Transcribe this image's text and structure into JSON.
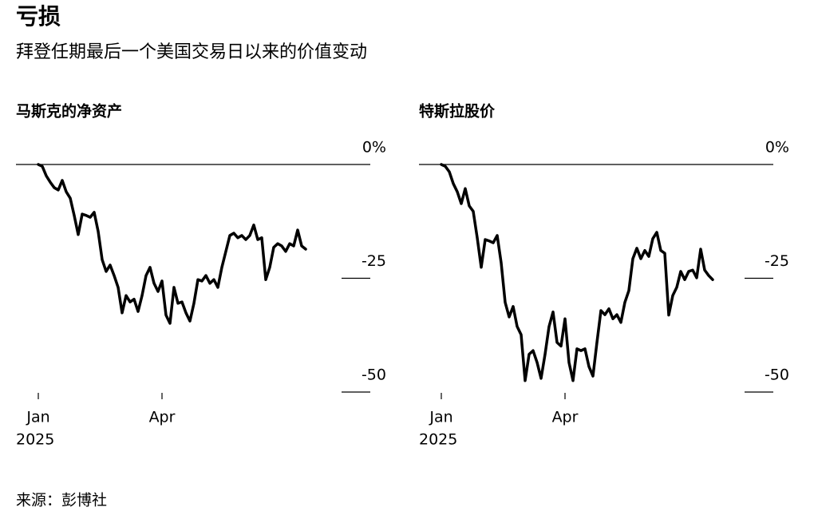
{
  "title": "亏损",
  "subtitle": "拜登任期最后一个美国交易日以来的价值变动",
  "source": "来源：彭博社",
  "chart_data": [
    {
      "type": "line",
      "title": "马斯克的净资产",
      "color": "#000000",
      "categories": [
        "Jan",
        null,
        null,
        null,
        null,
        null,
        null,
        null,
        null,
        null,
        null,
        null,
        null,
        null,
        null,
        null,
        null,
        null,
        null,
        null,
        null,
        null,
        null,
        null,
        null,
        null,
        null,
        null,
        null,
        null,
        null,
        "Apr",
        null,
        null,
        null,
        null,
        null,
        null,
        null,
        null,
        null,
        null,
        null,
        null,
        null,
        null,
        null,
        null,
        null,
        null,
        null,
        null,
        null,
        null,
        null,
        null,
        null,
        null,
        null,
        null,
        null,
        null,
        null,
        null,
        null,
        null,
        null,
        null
      ],
      "x_sublabel": "2025",
      "values": [
        0,
        -0.4,
        -2.5,
        -3.9,
        -5.1,
        -5.6,
        -3.5,
        -6.0,
        -7.4,
        -11.2,
        -15.4,
        -10.9,
        -11.2,
        -11.6,
        -10.5,
        -14.7,
        -20.9,
        -23.5,
        -22.1,
        -24.4,
        -27.0,
        -32.6,
        -28.8,
        -30.2,
        -29.6,
        -32.3,
        -28.8,
        -24.4,
        -22.6,
        -26.1,
        -27.9,
        -25.6,
        -33.1,
        -34.9,
        -27.0,
        -30.5,
        -30.2,
        -32.6,
        -34.4,
        -30.5,
        -25.3,
        -25.6,
        -24.4,
        -26.1,
        -25.3,
        -27.0,
        -22.6,
        -19.1,
        -15.6,
        -15.1,
        -16.1,
        -15.6,
        -16.5,
        -15.6,
        -13.3,
        -16.5,
        -16.1,
        -25.3,
        -22.6,
        -18.2,
        -17.4,
        -17.9,
        -19.1,
        -17.4,
        -17.9,
        -14.4,
        -17.9,
        -18.6
      ],
      "ylim": [
        -50,
        0
      ],
      "yticks": [
        {
          "value": 0,
          "label": "0%"
        },
        -25,
        -50
      ]
    },
    {
      "type": "line",
      "title": "特斯拉股价",
      "color": "#000000",
      "categories": [
        "Jan",
        null,
        null,
        null,
        null,
        null,
        null,
        null,
        null,
        null,
        null,
        null,
        null,
        null,
        null,
        null,
        null,
        null,
        null,
        null,
        null,
        null,
        null,
        null,
        null,
        null,
        null,
        null,
        null,
        null,
        null,
        "Apr",
        null,
        null,
        null,
        null,
        null,
        null,
        null,
        null,
        null,
        null,
        null,
        null,
        null,
        null,
        null,
        null,
        null,
        null,
        null,
        null,
        null,
        null,
        null,
        null,
        null,
        null,
        null,
        null,
        null,
        null,
        null,
        null,
        null,
        null,
        null,
        null,
        null
      ],
      "x_sublabel": "2025",
      "values": [
        0,
        -0.4,
        -1.6,
        -4.2,
        -6.0,
        -8.6,
        -5.3,
        -9.1,
        -10.3,
        -16.1,
        -22.6,
        -16.5,
        -16.8,
        -17.2,
        -15.6,
        -21.6,
        -30.3,
        -33.5,
        -31.2,
        -35.6,
        -37.4,
        -47.5,
        -41.7,
        -40.9,
        -43.5,
        -47.0,
        -41.7,
        -35.6,
        -32.4,
        -39.1,
        -39.9,
        -33.9,
        -43.5,
        -47.5,
        -40.5,
        -40.9,
        -40.5,
        -44.4,
        -46.5,
        -39.1,
        -32.1,
        -33.0,
        -31.7,
        -33.9,
        -33.0,
        -34.7,
        -30.3,
        -27.7,
        -20.7,
        -18.4,
        -20.7,
        -18.9,
        -20.2,
        -16.3,
        -14.9,
        -18.9,
        -19.5,
        -33.1,
        -28.8,
        -27.0,
        -23.5,
        -25.3,
        -23.5,
        -23.2,
        -24.9,
        -18.6,
        -23.2,
        -24.4,
        -25.3
      ],
      "ylim": [
        -50,
        0
      ],
      "yticks": [
        {
          "value": 0,
          "label": "0%"
        },
        -25,
        -50
      ]
    }
  ]
}
